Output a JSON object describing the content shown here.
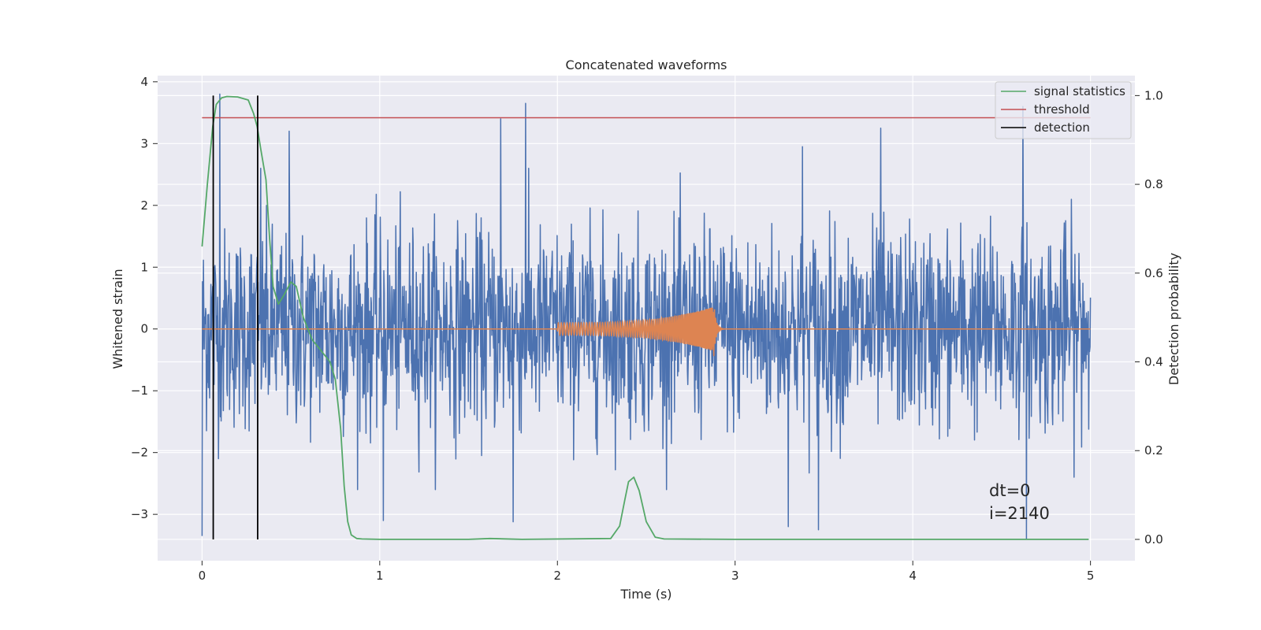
{
  "chart_data": {
    "type": "line",
    "title": "Concatenated waveforms",
    "xlabel": "Time (s)",
    "ylabel": "Whitened strain",
    "y2label": "Detection probability",
    "xlim": [
      -0.25,
      5.25
    ],
    "ylim": [
      -3.75,
      4.1
    ],
    "y2lim": [
      -0.048,
      1.045
    ],
    "xticks": [
      0,
      1,
      2,
      3,
      4,
      5
    ],
    "xtick_labels": [
      "0",
      "1",
      "2",
      "3",
      "4",
      "5"
    ],
    "yticks": [
      -3,
      -2,
      -1,
      0,
      1,
      2,
      3,
      4
    ],
    "ytick_labels": [
      "−3",
      "−2",
      "−1",
      "0",
      "1",
      "2",
      "3",
      "4"
    ],
    "y2ticks": [
      0.0,
      0.2,
      0.4,
      0.6,
      0.8,
      1.0
    ],
    "y2tick_labels": [
      "0.0",
      "0.2",
      "0.4",
      "0.6",
      "0.8",
      "1.0"
    ],
    "grid": true,
    "legend_position": "top-right",
    "legend": [
      {
        "name": "signal statistics",
        "color": "#55a868"
      },
      {
        "name": "threshold",
        "color": "#c44e52"
      },
      {
        "name": "detection",
        "color": "#000000"
      }
    ],
    "colors": {
      "strain": "#4c72b0",
      "template": "#dd8452",
      "background": "#eaeaf2",
      "grid": "#ffffff"
    },
    "strain_series": {
      "x_range": [
        0,
        5
      ],
      "n_samples": 2000,
      "typical_abs": 1.0,
      "peaks": [
        {
          "x": 0.1,
          "y": 3.8
        },
        {
          "x": 0.33,
          "y": 2.6
        },
        {
          "x": 0.49,
          "y": 3.2
        },
        {
          "x": 1.68,
          "y": 3.4
        },
        {
          "x": 1.82,
          "y": 3.65
        },
        {
          "x": 3.38,
          "y": 2.95
        },
        {
          "x": 3.82,
          "y": 3.25
        },
        {
          "x": 4.62,
          "y": 3.6
        },
        {
          "x": 0.0,
          "y": -3.35
        },
        {
          "x": 1.02,
          "y": -3.1
        },
        {
          "x": 1.75,
          "y": -3.12
        },
        {
          "x": 3.3,
          "y": -3.2
        },
        {
          "x": 3.47,
          "y": -3.25
        },
        {
          "x": 4.64,
          "y": -3.4
        }
      ]
    },
    "template_series": {
      "chirp_start": 2.0,
      "chirp_peak": 2.88,
      "chirp_end": 2.95,
      "peak_amplitude": 0.36,
      "trough_amplitude": -0.46,
      "start_amplitude": 0.1
    },
    "signal_statistics": {
      "x": [
        0.0,
        0.03,
        0.06,
        0.08,
        0.11,
        0.14,
        0.2,
        0.26,
        0.29,
        0.31,
        0.33,
        0.36,
        0.38,
        0.4,
        0.43,
        0.46,
        0.5,
        0.53,
        0.57,
        0.62,
        0.68,
        0.72,
        0.75,
        0.78,
        0.8,
        0.82,
        0.84,
        0.87,
        0.9,
        1.0,
        1.5,
        1.62,
        1.8,
        2.3,
        2.35,
        2.38,
        2.4,
        2.43,
        2.46,
        2.5,
        2.55,
        2.6,
        3.0,
        4.0,
        4.99
      ],
      "y": [
        0.66,
        0.8,
        0.93,
        0.98,
        0.995,
        0.998,
        0.997,
        0.99,
        0.96,
        0.93,
        0.88,
        0.81,
        0.68,
        0.57,
        0.53,
        0.55,
        0.58,
        0.57,
        0.5,
        0.45,
        0.42,
        0.4,
        0.36,
        0.25,
        0.12,
        0.04,
        0.01,
        0.002,
        0.001,
        0.0,
        0.0,
        0.002,
        0.0,
        0.002,
        0.03,
        0.09,
        0.13,
        0.14,
        0.11,
        0.04,
        0.005,
        0.001,
        0.0,
        0.0,
        0.0
      ]
    },
    "threshold": {
      "x": [
        0.0,
        5.0
      ],
      "y": 0.95
    },
    "detections": [
      0.063,
      0.313
    ],
    "annotation": {
      "x": 4.5,
      "line1": "dt=0",
      "line2": "i=2140"
    }
  }
}
